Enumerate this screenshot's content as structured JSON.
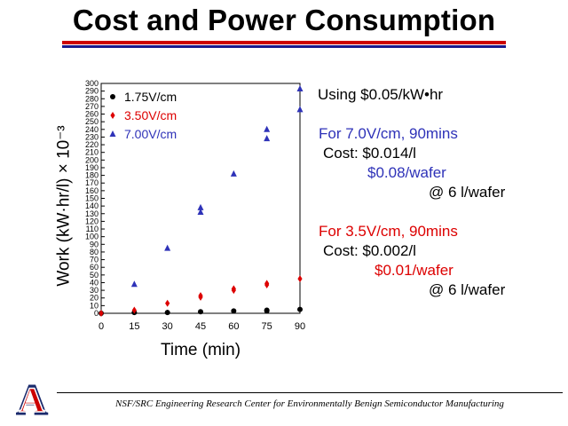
{
  "title": "Cost and Power Consumption",
  "notes": {
    "rate": "Using $0.05/kW•hr",
    "case1_header": "For 7.0V/cm, 90mins",
    "case1_cost": "Cost: $0.014/l",
    "case1_wafer": "$0.08/wafer",
    "case1_volume": "@ 6 l/wafer",
    "case2_header": "For 3.5V/cm, 90mins",
    "case2_cost": "Cost:  $0.002/l",
    "case2_wafer": "$0.01/wafer",
    "case2_volume": "@ 6 l/wafer"
  },
  "footer": "NSF/SRC Engineering Research Center for Environmentally Benign Semiconductor Manufacturing",
  "logo": {
    "letter": "A",
    "colors": {
      "blue": "#1a2a6c",
      "red": "#cc0000"
    }
  },
  "colors": {
    "black": "#000000",
    "red": "#dd0000",
    "blue": "#2e32b8"
  },
  "chart_data": {
    "type": "scatter",
    "xlabel": "Time (min)",
    "ylabel": "Work (kW·hr/l) × 10⁻³",
    "xlim": [
      0,
      90
    ],
    "ylim": [
      0,
      300
    ],
    "xticks": [
      0,
      15,
      30,
      45,
      60,
      75,
      90
    ],
    "yticks": [
      0,
      10,
      20,
      30,
      40,
      50,
      60,
      70,
      80,
      90,
      100,
      110,
      120,
      130,
      140,
      150,
      160,
      170,
      180,
      190,
      200,
      210,
      220,
      230,
      240,
      250,
      260,
      270,
      280,
      290,
      300
    ],
    "grid": false,
    "legend_position": "top-left",
    "series": [
      {
        "name": "1.75V/cm",
        "marker": "circle",
        "color": "#000000",
        "points": [
          [
            0,
            0
          ],
          [
            15,
            1
          ],
          [
            30,
            1
          ],
          [
            45,
            2
          ],
          [
            60,
            3
          ],
          [
            75,
            4
          ],
          [
            75,
            3
          ],
          [
            90,
            5
          ]
        ]
      },
      {
        "name": "3.50V/cm",
        "marker": "diamond",
        "color": "#dd0000",
        "points": [
          [
            0,
            0
          ],
          [
            15,
            4
          ],
          [
            30,
            13
          ],
          [
            45,
            21
          ],
          [
            45,
            23
          ],
          [
            60,
            30
          ],
          [
            60,
            32
          ],
          [
            75,
            37
          ],
          [
            75,
            39
          ],
          [
            90,
            45
          ]
        ]
      },
      {
        "name": "7.00V/cm",
        "marker": "triangle",
        "color": "#2e32b8",
        "points": [
          [
            15,
            38
          ],
          [
            30,
            85
          ],
          [
            45,
            132
          ],
          [
            45,
            138
          ],
          [
            60,
            182
          ],
          [
            75,
            228
          ],
          [
            75,
            240
          ],
          [
            90,
            266
          ],
          [
            90,
            293
          ]
        ]
      }
    ]
  }
}
